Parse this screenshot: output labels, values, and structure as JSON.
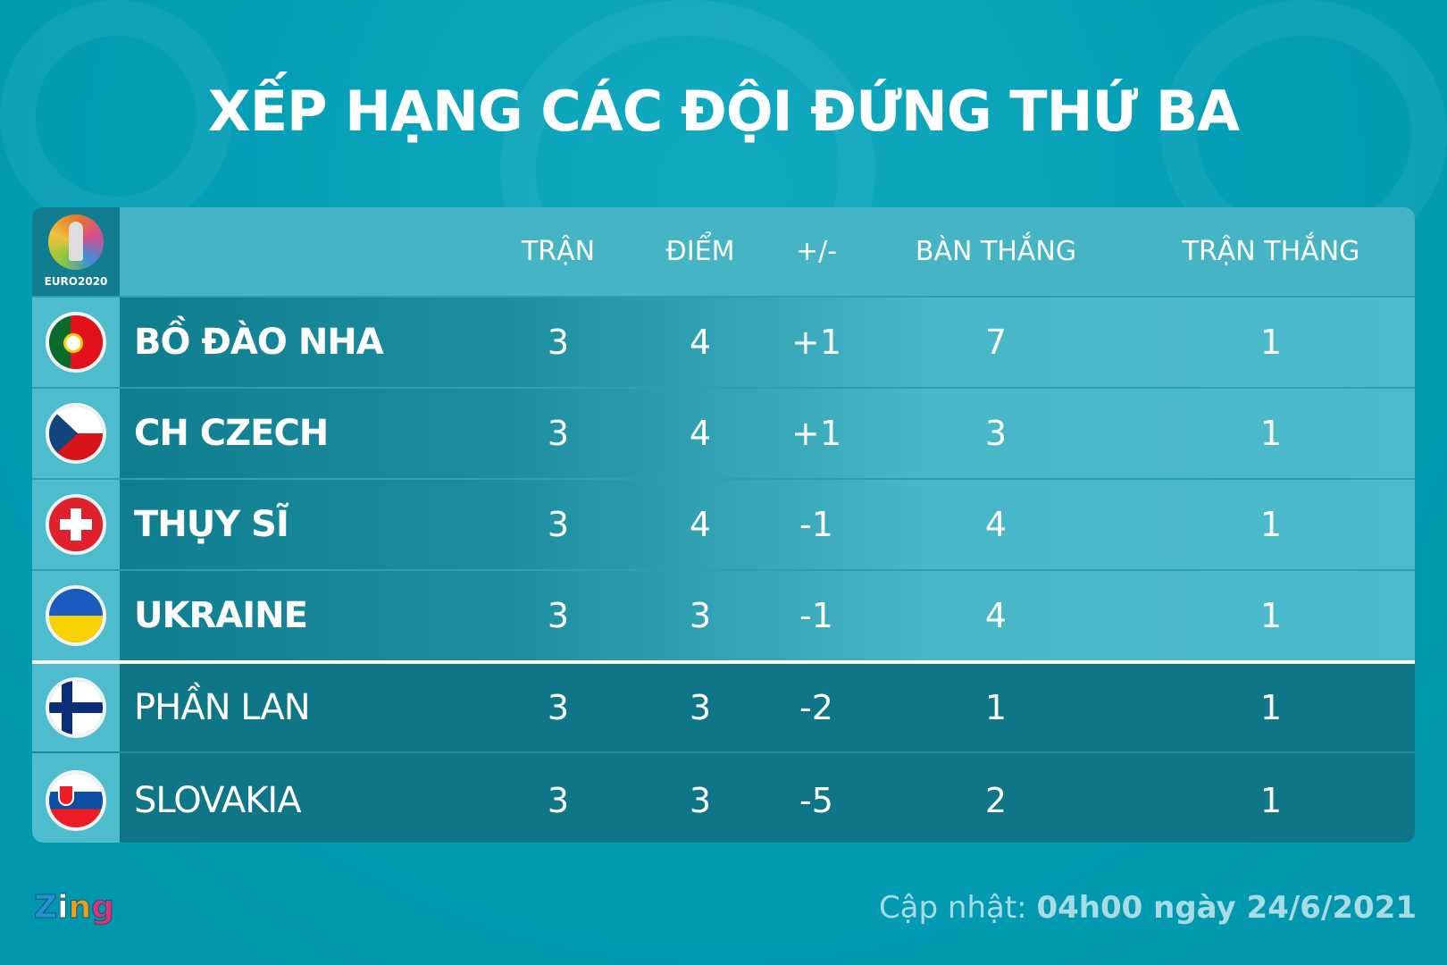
{
  "title": "XẾP HẠNG CÁC ĐỘI ĐỨNG THỨ BA",
  "logo_text": "EURO2020",
  "headers": [
    "TRẬN",
    "ĐIỂM",
    "+/-",
    "BÀN THẮNG",
    "TRẬN THẮNG"
  ],
  "teams": [
    {
      "name": "BỒ ĐÀO NHA",
      "flag": "portugal-flag",
      "played": "3",
      "points": "4",
      "gd": "+1",
      "goals": "7",
      "wins": "1",
      "qualified": true
    },
    {
      "name": "CH CZECH",
      "flag": "czech-flag",
      "played": "3",
      "points": "4",
      "gd": "+1",
      "goals": "3",
      "wins": "1",
      "qualified": true
    },
    {
      "name": "THỤY SĨ",
      "flag": "switzerland-flag",
      "played": "3",
      "points": "4",
      "gd": "-1",
      "goals": "4",
      "wins": "1",
      "qualified": true
    },
    {
      "name": "UKRAINE",
      "flag": "ukraine-flag",
      "played": "3",
      "points": "3",
      "gd": "-1",
      "goals": "4",
      "wins": "1",
      "qualified": true
    },
    {
      "name": "PHẦN LAN",
      "flag": "finland-flag",
      "played": "3",
      "points": "3",
      "gd": "-2",
      "goals": "1",
      "wins": "1",
      "qualified": false
    },
    {
      "name": "SLOVAKIA",
      "flag": "slovakia-flag",
      "played": "3",
      "points": "3",
      "gd": "-5",
      "goals": "2",
      "wins": "1",
      "qualified": false
    }
  ],
  "footer": {
    "brand": "Zing",
    "update_label": "Cập nhật:",
    "update_value": "04h00 ngày 24/6/2021"
  },
  "colors": {
    "background": "#049fb6",
    "header": "#45b4c5",
    "eliminated_row": "#0f7687"
  }
}
